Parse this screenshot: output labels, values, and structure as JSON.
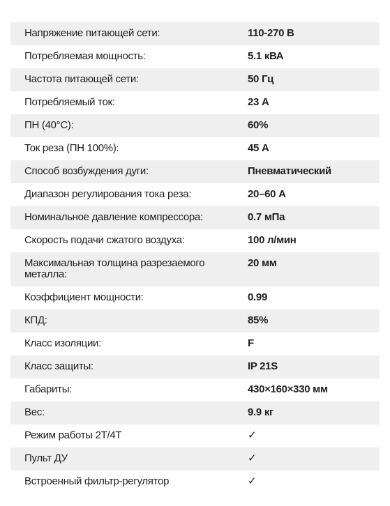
{
  "table": {
    "rows": [
      [
        "Напряжение питающей сети:",
        "110-270 В"
      ],
      [
        "Потребляемая мощность:",
        "5.1 кВА"
      ],
      [
        "Частота питающей сети:",
        "50 Гц"
      ],
      [
        "Потребляемый ток:",
        "23 А"
      ],
      [
        "ПН (40°С):",
        "60%"
      ],
      [
        "Ток реза (ПН 100%):",
        "45 А"
      ],
      [
        "Способ возбуждения дуги:",
        "Пневматический"
      ],
      [
        "Диапазон регулирования тока реза:",
        "20–60 А"
      ],
      [
        "Номинальное давление компрессора:",
        "0.7 мПа"
      ],
      [
        "Скорость подачи сжатого воздуха:",
        "100 л/мин"
      ],
      [
        "Максимальная толщина разрезаемого металла:",
        "20 мм"
      ],
      [
        "Коэффициент мощности:",
        "0.99"
      ],
      [
        "КПД:",
        "85%"
      ],
      [
        "Класс изоляции:",
        "F"
      ],
      [
        "Класс защиты:",
        "IP 21S"
      ],
      [
        "Габариты:",
        "430×160×330 мм"
      ],
      [
        "Вес:",
        "9.9 кг"
      ],
      [
        "Режим работы 2Т/4Т",
        "✓"
      ],
      [
        "Пульт ДУ",
        "✓"
      ],
      [
        "Встроенный фильтр-регулятор",
        "✓"
      ]
    ]
  }
}
